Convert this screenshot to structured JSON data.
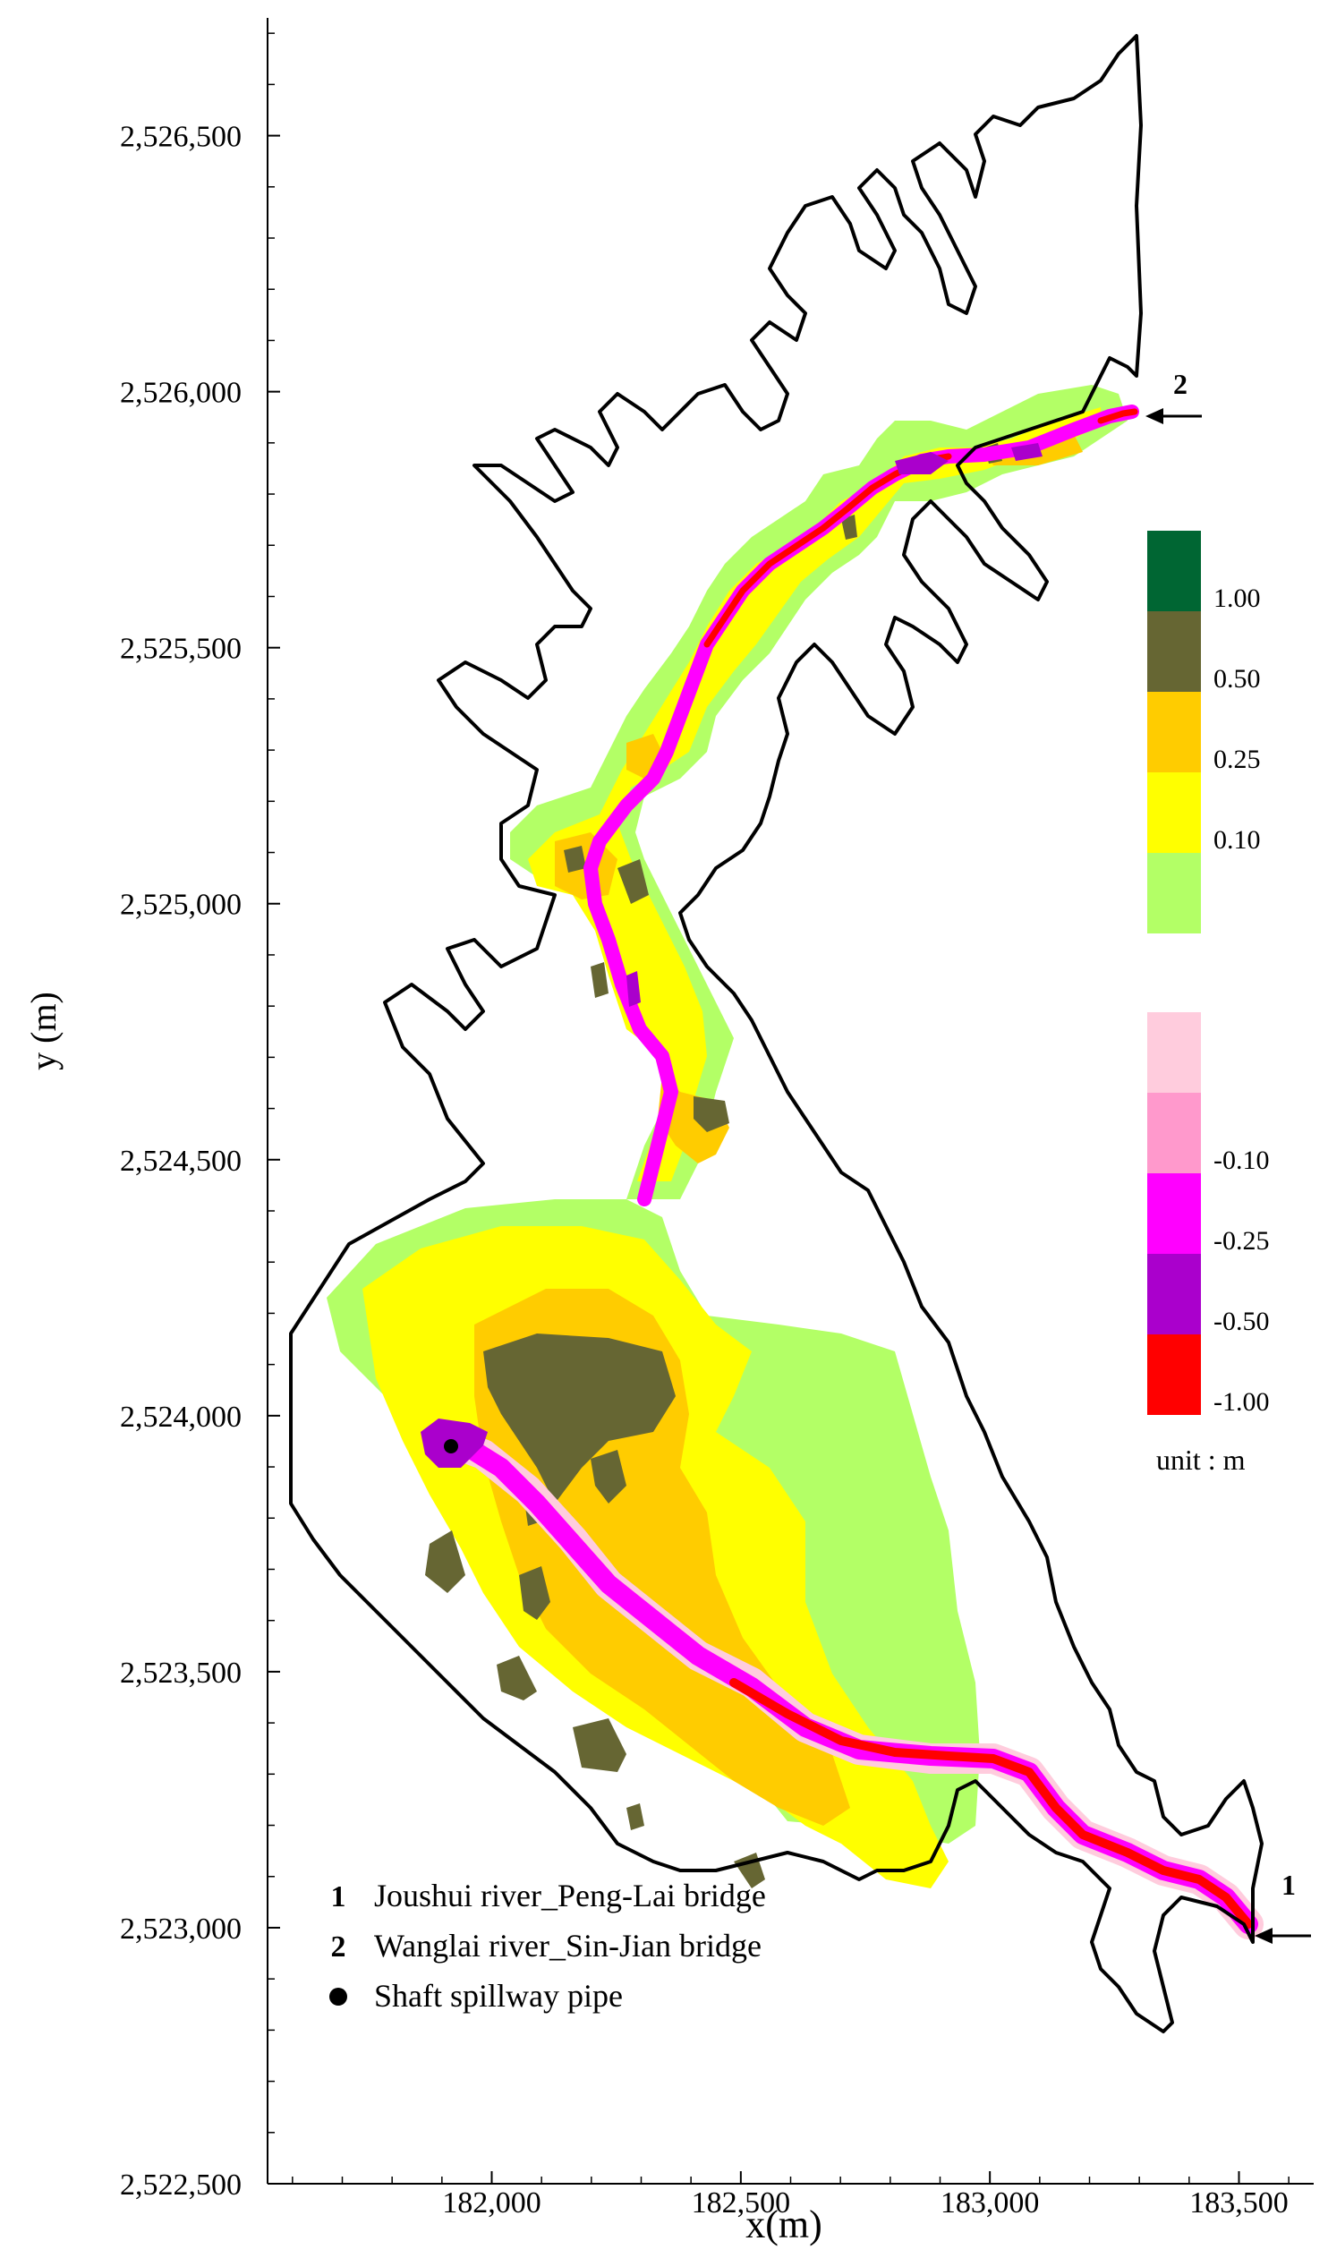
{
  "axes": {
    "x_label": "x(m)",
    "y_label": "y (m)",
    "x_ticks": [
      {
        "value": 182000,
        "label": "182,000"
      },
      {
        "value": 182500,
        "label": "182,500"
      },
      {
        "value": 183000,
        "label": "183,000"
      },
      {
        "value": 183500,
        "label": "183,500"
      }
    ],
    "y_ticks": [
      {
        "value": 2522500,
        "label": "2,522,500"
      },
      {
        "value": 2523000,
        "label": "2,523,000"
      },
      {
        "value": 2523500,
        "label": "2,523,500"
      },
      {
        "value": 2524000,
        "label": "2,524,000"
      },
      {
        "value": 2524500,
        "label": "2,524,500"
      },
      {
        "value": 2525000,
        "label": "2,525,000"
      },
      {
        "value": 2525500,
        "label": "2,525,500"
      },
      {
        "value": 2526000,
        "label": "2,526,000"
      },
      {
        "value": 2526500,
        "label": "2,526,500"
      }
    ],
    "x_range": [
      181550,
      183650
    ],
    "y_range": [
      2522500,
      2526730
    ]
  },
  "legend_positive": {
    "entries": [
      {
        "label": "1.00",
        "color": "#006633"
      },
      {
        "label": "0.50",
        "color": "#666633"
      },
      {
        "label": "0.25",
        "color": "#ffcc00"
      },
      {
        "label": "0.10",
        "color": "#ffff00"
      },
      {
        "label": "",
        "color": "#b3ff66"
      }
    ]
  },
  "legend_negative": {
    "entries": [
      {
        "label": "",
        "color": "#ffccdd"
      },
      {
        "label": "-0.10",
        "color": "#ff99cc"
      },
      {
        "label": "-0.25",
        "color": "#ff00ff"
      },
      {
        "label": "-0.50",
        "color": "#aa00cc"
      },
      {
        "label": "-1.00",
        "color": "#ff0000"
      }
    ]
  },
  "unit_label": "unit : m",
  "markers": {
    "marker1": "1",
    "marker2": "2"
  },
  "notes": [
    {
      "symbol": "1",
      "text": "Joushui river_Peng-Lai bridge"
    },
    {
      "symbol": "2",
      "text": "Wanglai river_Sin-Jian bridge"
    },
    {
      "symbol": "●",
      "text": "Shaft spillway pipe"
    }
  ]
}
